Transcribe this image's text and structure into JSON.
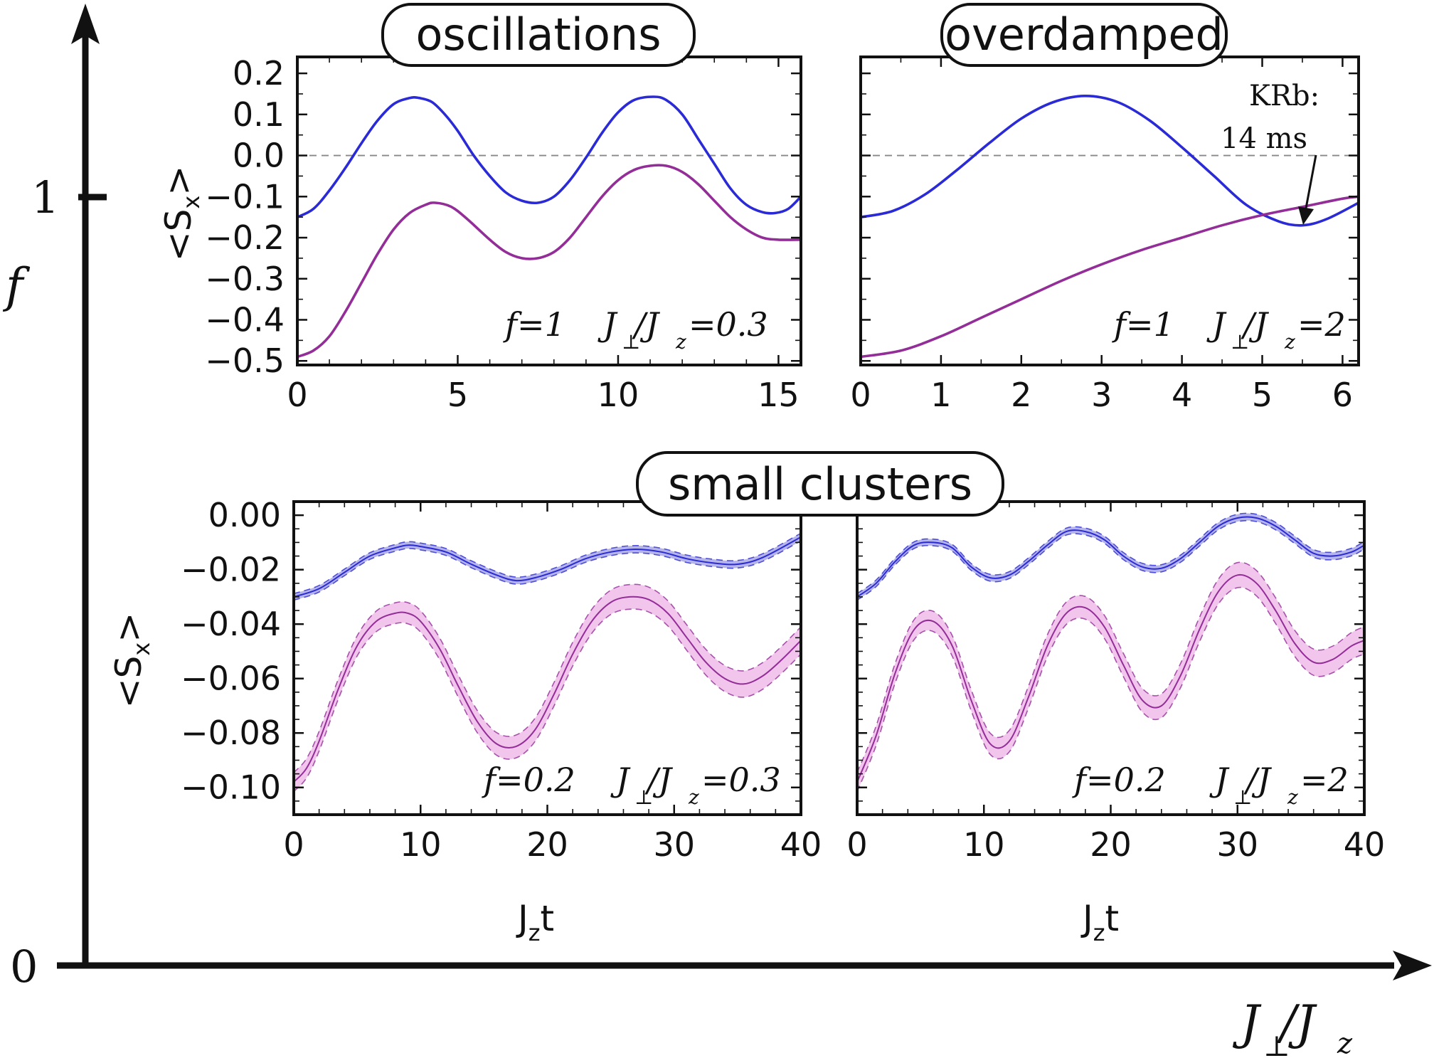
{
  "colors": {
    "series_a": "#2a2ad6",
    "series_b": "#932d98",
    "band_a": "#a9a8e6",
    "band_b": "#eebbe9",
    "axis": "#111111",
    "zero_line": "#888888"
  },
  "outer_axes": {
    "y_label": "f",
    "x_label_main": "J",
    "x_label_main_sub": "⊥",
    "x_label_sep": "/J",
    "x_label_sep_sub": "z",
    "y_tick_1": "1",
    "origin_label": "0"
  },
  "labels": {
    "ylabel_main": "<S",
    "ylabel_sub": "x",
    "ylabel_close": ">",
    "xlabel_main": "J",
    "xlabel_sub": "z",
    "xlabel_tail": "t",
    "j_symbol": "J",
    "perp_sub": "⊥",
    "slash_j": "/J",
    "z_sub": "z"
  },
  "titles": {
    "p1": "oscillations",
    "p2": "overdamped",
    "bottom": "small clusters"
  },
  "annotations": {
    "p1_f": "f=1",
    "p1_ratio": "=0.3",
    "p2_f": "f=1",
    "p2_ratio": "=2",
    "p3_f": "f=0.2",
    "p3_ratio": "=0.3",
    "p4_f": "f=0.2",
    "p4_ratio": "=2",
    "krb_line1": "KRb:",
    "krb_line2": "14 ms"
  },
  "chart_data": [
    {
      "id": "p1",
      "type": "line",
      "title": "oscillations",
      "xlabel": "",
      "ylabel": "<Sx>",
      "xlim": [
        0,
        15.7
      ],
      "ylim": [
        -0.51,
        0.24
      ],
      "xticks": [
        "0",
        "5",
        "10",
        "15"
      ],
      "xtick_values": [
        0,
        5,
        10,
        15
      ],
      "yticks": [
        "0.2",
        "0.1",
        "0.0",
        "−0.1",
        "−0.2",
        "−0.3",
        "−0.4",
        "−0.5"
      ],
      "ytick_values": [
        0.2,
        0.1,
        0.0,
        -0.1,
        -0.2,
        -0.3,
        -0.4,
        -0.5
      ],
      "zero_line": true,
      "series": [
        {
          "color_key": "series_a",
          "x": [
            0,
            0.5,
            1,
            1.5,
            2,
            2.5,
            3,
            3.5,
            3.8,
            4.2,
            4.6,
            5,
            5.5,
            6,
            6.5,
            7,
            7.5,
            8,
            8.5,
            9,
            9.5,
            10,
            10.5,
            11.1,
            11.5,
            12,
            12.5,
            13,
            13.5,
            14,
            14.5,
            14.9,
            15.3,
            15.7
          ],
          "y": [
            -0.15,
            -0.13,
            -0.085,
            -0.03,
            0.03,
            0.085,
            0.125,
            0.14,
            0.14,
            0.13,
            0.1,
            0.06,
            0.0,
            -0.05,
            -0.09,
            -0.11,
            -0.115,
            -0.1,
            -0.06,
            -0.005,
            0.055,
            0.105,
            0.135,
            0.143,
            0.135,
            0.1,
            0.04,
            -0.02,
            -0.08,
            -0.12,
            -0.138,
            -0.14,
            -0.13,
            -0.1
          ]
        },
        {
          "color_key": "series_b",
          "x": [
            0,
            0.5,
            1,
            1.5,
            2,
            2.5,
            3,
            3.5,
            4,
            4.3,
            4.8,
            5.3,
            6,
            6.5,
            7,
            7.5,
            8,
            8.5,
            9,
            9.5,
            10,
            10.5,
            11,
            11.5,
            12,
            12.5,
            13,
            13.5,
            14,
            14.5,
            15,
            15.7
          ],
          "y": [
            -0.49,
            -0.475,
            -0.44,
            -0.38,
            -0.31,
            -0.24,
            -0.18,
            -0.14,
            -0.12,
            -0.115,
            -0.125,
            -0.155,
            -0.205,
            -0.235,
            -0.25,
            -0.25,
            -0.235,
            -0.2,
            -0.15,
            -0.1,
            -0.06,
            -0.035,
            -0.025,
            -0.025,
            -0.04,
            -0.07,
            -0.11,
            -0.15,
            -0.18,
            -0.2,
            -0.205,
            -0.205
          ]
        }
      ]
    },
    {
      "id": "p2",
      "type": "line",
      "title": "overdamped",
      "xlabel": "",
      "ylabel": "",
      "xlim": [
        0,
        6.2
      ],
      "ylim": [
        -0.51,
        0.24
      ],
      "xticks": [
        "0",
        "1",
        "2",
        "3",
        "4",
        "5",
        "6"
      ],
      "xtick_values": [
        0,
        1,
        2,
        3,
        4,
        5,
        6
      ],
      "zero_line": true,
      "series": [
        {
          "color_key": "series_a",
          "x": [
            0,
            0.4,
            0.8,
            1.2,
            1.6,
            2.0,
            2.4,
            2.8,
            3.2,
            3.6,
            4.0,
            4.4,
            4.8,
            5.2,
            5.5,
            5.8,
            6.2
          ],
          "y": [
            -0.15,
            -0.135,
            -0.095,
            -0.035,
            0.03,
            0.09,
            0.13,
            0.145,
            0.13,
            0.085,
            0.02,
            -0.05,
            -0.12,
            -0.16,
            -0.17,
            -0.155,
            -0.115
          ]
        },
        {
          "color_key": "series_b",
          "x": [
            0,
            0.5,
            1,
            1.5,
            2,
            2.5,
            3,
            3.5,
            4,
            4.5,
            5,
            5.5,
            6,
            6.2
          ],
          "y": [
            -0.49,
            -0.475,
            -0.44,
            -0.395,
            -0.35,
            -0.305,
            -0.265,
            -0.23,
            -0.2,
            -0.17,
            -0.145,
            -0.125,
            -0.105,
            -0.1
          ]
        }
      ]
    },
    {
      "id": "p3",
      "type": "line",
      "xlabel": "Jzt",
      "ylabel": "<Sx>",
      "xlim": [
        0,
        40
      ],
      "ylim": [
        -0.11,
        0.005
      ],
      "xticks": [
        "0",
        "10",
        "20",
        "30",
        "40"
      ],
      "xtick_values": [
        0,
        10,
        20,
        30,
        40
      ],
      "yticks": [
        "0.00",
        "−0.02",
        "−0.04",
        "−0.06",
        "−0.08",
        "−0.10"
      ],
      "ytick_values": [
        0.0,
        -0.02,
        -0.04,
        -0.06,
        -0.08,
        -0.1
      ],
      "zero_line": false,
      "series": [
        {
          "color_key": "series_a",
          "band_key": "band_a",
          "band_halfwidth": [
            0.0012,
            0.0014
          ],
          "x": [
            0,
            2,
            4,
            6,
            8,
            9,
            10,
            12,
            14,
            16,
            17.5,
            19,
            21,
            23,
            25,
            27,
            29,
            31,
            33,
            35,
            37,
            40
          ],
          "y": [
            -0.03,
            -0.027,
            -0.021,
            -0.015,
            -0.012,
            -0.011,
            -0.0115,
            -0.0135,
            -0.018,
            -0.022,
            -0.024,
            -0.023,
            -0.02,
            -0.016,
            -0.0135,
            -0.0125,
            -0.0135,
            -0.016,
            -0.0175,
            -0.018,
            -0.0155,
            -0.008
          ]
        },
        {
          "color_key": "series_b",
          "band_key": "band_b",
          "band_halfwidth": [
            0.0035,
            0.005
          ],
          "x": [
            0,
            1,
            2,
            3.5,
            5,
            6.5,
            8,
            9,
            10,
            11.5,
            13,
            14.5,
            16,
            17.5,
            19,
            20.5,
            22,
            23.5,
            25,
            26.5,
            28,
            29.5,
            31,
            32.5,
            34,
            35.5,
            37,
            38.5,
            40
          ],
          "y": [
            -0.098,
            -0.093,
            -0.083,
            -0.064,
            -0.048,
            -0.039,
            -0.036,
            -0.036,
            -0.039,
            -0.049,
            -0.063,
            -0.076,
            -0.084,
            -0.085,
            -0.079,
            -0.066,
            -0.051,
            -0.039,
            -0.032,
            -0.03,
            -0.031,
            -0.036,
            -0.045,
            -0.054,
            -0.06,
            -0.062,
            -0.059,
            -0.053,
            -0.046
          ]
        }
      ]
    },
    {
      "id": "p4",
      "type": "line",
      "xlabel": "Jzt",
      "ylabel": "",
      "xlim": [
        0,
        40
      ],
      "ylim": [
        -0.11,
        0.005
      ],
      "xticks": [
        "0",
        "10",
        "20",
        "30",
        "40"
      ],
      "xtick_values": [
        0,
        10,
        20,
        30,
        40
      ],
      "zero_line": false,
      "series": [
        {
          "color_key": "series_a",
          "band_key": "band_a",
          "band_halfwidth": [
            0.0012,
            0.0014
          ],
          "x": [
            0,
            1.5,
            3,
            4.5,
            6,
            7.5,
            9,
            10.5,
            12,
            13.5,
            15,
            16.5,
            18,
            19.5,
            21,
            22.5,
            24,
            25.5,
            27,
            28.5,
            30,
            31.5,
            33,
            34.5,
            36,
            37.5,
            39,
            40
          ],
          "y": [
            -0.03,
            -0.025,
            -0.017,
            -0.011,
            -0.01,
            -0.012,
            -0.019,
            -0.023,
            -0.022,
            -0.017,
            -0.011,
            -0.006,
            -0.006,
            -0.009,
            -0.015,
            -0.019,
            -0.0195,
            -0.016,
            -0.01,
            -0.004,
            -0.001,
            -0.001,
            -0.004,
            -0.009,
            -0.014,
            -0.015,
            -0.0135,
            -0.011
          ]
        },
        {
          "color_key": "series_b",
          "band_key": "band_b",
          "band_halfwidth": [
            0.0035,
            0.005
          ],
          "x": [
            0,
            1.5,
            3,
            4.5,
            6,
            7.5,
            9,
            10.5,
            12,
            13.5,
            15,
            16.5,
            18,
            19.5,
            21,
            22.5,
            24,
            25.5,
            27,
            28.5,
            30,
            31.5,
            33,
            34.5,
            36,
            37.5,
            39,
            40
          ],
          "y": [
            -0.098,
            -0.081,
            -0.058,
            -0.042,
            -0.039,
            -0.048,
            -0.068,
            -0.084,
            -0.083,
            -0.067,
            -0.048,
            -0.036,
            -0.034,
            -0.041,
            -0.055,
            -0.068,
            -0.07,
            -0.059,
            -0.042,
            -0.028,
            -0.022,
            -0.025,
            -0.035,
            -0.047,
            -0.054,
            -0.053,
            -0.048,
            -0.046
          ]
        }
      ]
    }
  ]
}
